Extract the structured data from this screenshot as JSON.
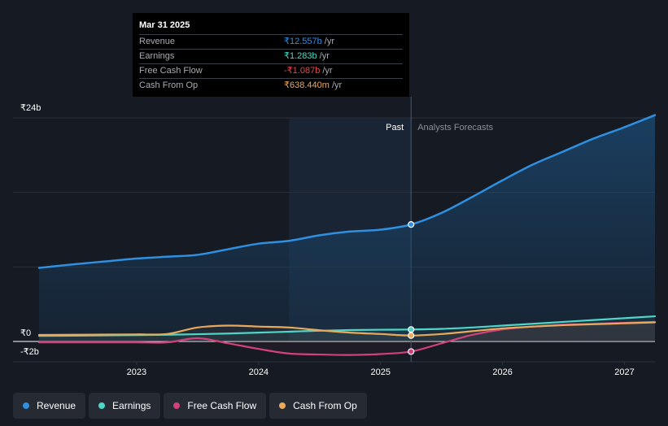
{
  "tooltip": {
    "date": "Mar 31 2025",
    "rows": [
      {
        "label": "Revenue",
        "value": "₹12.557b",
        "unit": "/yr",
        "color": "#2f8fe0"
      },
      {
        "label": "Earnings",
        "value": "₹1.283b",
        "unit": "/yr",
        "color": "#4fd6c8"
      },
      {
        "label": "Free Cash Flow",
        "value": "-₹1.087b",
        "unit": "/yr",
        "color": "#e5484d"
      },
      {
        "label": "Cash From Op",
        "value": "₹638.440m",
        "unit": "/yr",
        "color": "#e8a95c"
      }
    ]
  },
  "legend": [
    {
      "label": "Revenue",
      "color": "#2f8fe0"
    },
    {
      "label": "Earnings",
      "color": "#4fd6c8"
    },
    {
      "label": "Free Cash Flow",
      "color": "#d1417c"
    },
    {
      "label": "Cash From Op",
      "color": "#e8a95c"
    }
  ],
  "chart_data": {
    "type": "line",
    "title": "",
    "xlabel": "",
    "ylabel": "",
    "ylim": [
      -2,
      24
    ],
    "xlim": [
      2022.2,
      2027.25
    ],
    "y_tick_labels": [
      {
        "value": 24,
        "label": "₹24b"
      },
      {
        "value": 0,
        "label": "₹0"
      },
      {
        "value": -2,
        "label": "-₹2b"
      }
    ],
    "x_ticks": [
      {
        "value": 2023,
        "label": "2023"
      },
      {
        "value": 2024,
        "label": "2024"
      },
      {
        "value": 2025,
        "label": "2025"
      },
      {
        "value": 2026,
        "label": "2026"
      },
      {
        "value": 2027,
        "label": "2027"
      }
    ],
    "past_label": "Past",
    "forecast_label": "Analysts Forecasts",
    "highlight_start": 2024.25,
    "divider_x": 2025.25,
    "series": [
      {
        "name": "Revenue",
        "color": "#2f8fe0",
        "points": [
          [
            2022.2,
            7.9
          ],
          [
            2022.5,
            8.3
          ],
          [
            2022.75,
            8.6
          ],
          [
            2023.0,
            8.9
          ],
          [
            2023.25,
            9.1
          ],
          [
            2023.5,
            9.3
          ],
          [
            2023.75,
            9.9
          ],
          [
            2024.0,
            10.5
          ],
          [
            2024.25,
            10.8
          ],
          [
            2024.5,
            11.4
          ],
          [
            2024.75,
            11.8
          ],
          [
            2025.0,
            12.0
          ],
          [
            2025.25,
            12.557
          ],
          [
            2025.5,
            13.8
          ],
          [
            2025.75,
            15.5
          ],
          [
            2026.0,
            17.3
          ],
          [
            2026.25,
            19.0
          ],
          [
            2026.5,
            20.4
          ],
          [
            2026.75,
            21.8
          ],
          [
            2027.0,
            23.0
          ],
          [
            2027.25,
            24.3
          ]
        ],
        "marker": [
          2025.25,
          12.557
        ]
      },
      {
        "name": "Earnings",
        "color": "#4fd6c8",
        "points": [
          [
            2022.2,
            0.6
          ],
          [
            2022.5,
            0.62
          ],
          [
            2022.75,
            0.65
          ],
          [
            2023.0,
            0.68
          ],
          [
            2023.25,
            0.72
          ],
          [
            2023.5,
            0.78
          ],
          [
            2023.75,
            0.85
          ],
          [
            2024.0,
            0.95
          ],
          [
            2024.25,
            1.05
          ],
          [
            2024.5,
            1.15
          ],
          [
            2024.75,
            1.22
          ],
          [
            2025.0,
            1.26
          ],
          [
            2025.25,
            1.283
          ],
          [
            2025.5,
            1.35
          ],
          [
            2025.75,
            1.5
          ],
          [
            2026.0,
            1.7
          ],
          [
            2026.25,
            1.9
          ],
          [
            2026.5,
            2.1
          ],
          [
            2026.75,
            2.3
          ],
          [
            2027.0,
            2.5
          ],
          [
            2027.25,
            2.7
          ]
        ],
        "marker": [
          2025.25,
          1.283
        ]
      },
      {
        "name": "Free Cash Flow",
        "color": "#d1417c",
        "points": [
          [
            2022.2,
            -0.1
          ],
          [
            2022.5,
            -0.1
          ],
          [
            2022.75,
            -0.1
          ],
          [
            2023.0,
            -0.1
          ],
          [
            2023.25,
            -0.1
          ],
          [
            2023.5,
            0.35
          ],
          [
            2023.75,
            -0.2
          ],
          [
            2024.0,
            -0.8
          ],
          [
            2024.25,
            -1.3
          ],
          [
            2024.5,
            -1.4
          ],
          [
            2024.75,
            -1.45
          ],
          [
            2025.0,
            -1.35
          ],
          [
            2025.25,
            -1.087
          ],
          [
            2025.5,
            -0.2
          ],
          [
            2025.75,
            0.7
          ],
          [
            2026.0,
            1.3
          ],
          [
            2026.25,
            1.6
          ],
          [
            2026.5,
            1.8
          ],
          [
            2026.75,
            1.9
          ],
          [
            2027.0,
            2.0
          ],
          [
            2027.25,
            2.1
          ]
        ],
        "marker": [
          2025.25,
          -1.087
        ]
      },
      {
        "name": "Cash From Op",
        "color": "#e8a95c",
        "points": [
          [
            2022.2,
            0.7
          ],
          [
            2022.5,
            0.72
          ],
          [
            2022.75,
            0.74
          ],
          [
            2023.0,
            0.76
          ],
          [
            2023.25,
            0.8
          ],
          [
            2023.5,
            1.5
          ],
          [
            2023.75,
            1.7
          ],
          [
            2024.0,
            1.6
          ],
          [
            2024.25,
            1.5
          ],
          [
            2024.5,
            1.2
          ],
          [
            2024.75,
            0.95
          ],
          [
            2025.0,
            0.8
          ],
          [
            2025.25,
            0.638
          ],
          [
            2025.5,
            0.8
          ],
          [
            2025.75,
            1.1
          ],
          [
            2026.0,
            1.4
          ],
          [
            2026.25,
            1.6
          ],
          [
            2026.5,
            1.75
          ],
          [
            2026.75,
            1.85
          ],
          [
            2027.0,
            1.95
          ],
          [
            2027.25,
            2.05
          ]
        ],
        "marker": [
          2025.25,
          0.638
        ]
      }
    ]
  }
}
